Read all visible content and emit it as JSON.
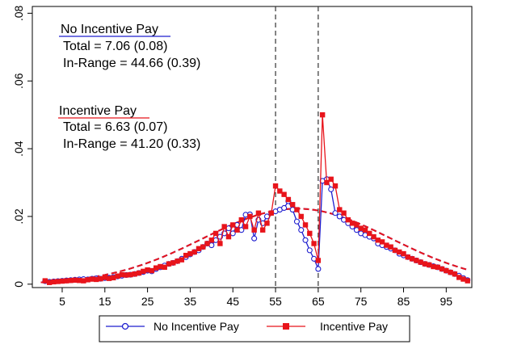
{
  "chart_data": {
    "type": "line",
    "x": [
      1,
      2,
      3,
      4,
      5,
      6,
      7,
      8,
      9,
      10,
      11,
      12,
      13,
      14,
      15,
      16,
      17,
      18,
      19,
      20,
      21,
      22,
      23,
      24,
      25,
      26,
      27,
      28,
      29,
      30,
      31,
      32,
      33,
      34,
      35,
      36,
      37,
      38,
      39,
      40,
      41,
      42,
      43,
      44,
      45,
      46,
      47,
      48,
      49,
      50,
      51,
      52,
      53,
      54,
      55,
      56,
      57,
      58,
      59,
      60,
      61,
      62,
      63,
      64,
      65,
      66,
      67,
      68,
      69,
      70,
      71,
      72,
      73,
      74,
      75,
      76,
      77,
      78,
      79,
      80,
      81,
      82,
      83,
      84,
      85,
      86,
      87,
      88,
      89,
      90,
      91,
      92,
      93,
      94,
      95,
      96,
      97,
      98,
      99,
      100
    ],
    "series": [
      {
        "name": "No Incentive Pay",
        "color": "#1f1fcf",
        "marker": "circle",
        "values": [
          0.0009,
          0.0007,
          0.0008,
          0.0009,
          0.001,
          0.0011,
          0.0012,
          0.0013,
          0.0014,
          0.0015,
          0.0014,
          0.0016,
          0.0017,
          0.0016,
          0.0018,
          0.0019,
          0.0021,
          0.0023,
          0.0025,
          0.0027,
          0.0028,
          0.003,
          0.0033,
          0.0036,
          0.004,
          0.0038,
          0.0045,
          0.005,
          0.0055,
          0.006,
          0.0063,
          0.0068,
          0.0075,
          0.008,
          0.0088,
          0.0095,
          0.01,
          0.011,
          0.012,
          0.0115,
          0.013,
          0.014,
          0.015,
          0.0165,
          0.015,
          0.0175,
          0.016,
          0.0205,
          0.0206,
          0.0135,
          0.019,
          0.018,
          0.02,
          0.021,
          0.0215,
          0.022,
          0.0225,
          0.0245,
          0.022,
          0.0185,
          0.016,
          0.013,
          0.01,
          0.0075,
          0.0045,
          0.0305,
          0.031,
          0.028,
          0.021,
          0.02,
          0.019,
          0.018,
          0.017,
          0.016,
          0.015,
          0.0145,
          0.014,
          0.0135,
          0.012,
          0.0115,
          0.011,
          0.0105,
          0.01,
          0.009,
          0.0085,
          0.008,
          0.0075,
          0.007,
          0.0065,
          0.006,
          0.0057,
          0.0053,
          0.005,
          0.0045,
          0.004,
          0.0035,
          0.003,
          0.0025,
          0.0018,
          0.0012
        ]
      },
      {
        "name": "Incentive Pay",
        "color": "#e8141b",
        "marker": "square",
        "values": [
          0.001,
          0.0005,
          0.0007,
          0.0008,
          0.0009,
          0.001,
          0.0011,
          0.0012,
          0.0011,
          0.001,
          0.0013,
          0.0015,
          0.0014,
          0.0016,
          0.002,
          0.0017,
          0.0019,
          0.0024,
          0.0028,
          0.0027,
          0.0028,
          0.003,
          0.0033,
          0.0038,
          0.0042,
          0.004,
          0.0048,
          0.0052,
          0.005,
          0.006,
          0.0063,
          0.0068,
          0.0072,
          0.0085,
          0.009,
          0.0095,
          0.0105,
          0.011,
          0.012,
          0.013,
          0.015,
          0.012,
          0.017,
          0.014,
          0.0175,
          0.016,
          0.019,
          0.017,
          0.02,
          0.016,
          0.021,
          0.016,
          0.018,
          0.021,
          0.029,
          0.0275,
          0.0265,
          0.025,
          0.0235,
          0.022,
          0.02,
          0.0175,
          0.015,
          0.012,
          0.007,
          0.05,
          0.03,
          0.031,
          0.029,
          0.022,
          0.021,
          0.019,
          0.018,
          0.0175,
          0.0165,
          0.016,
          0.015,
          0.014,
          0.013,
          0.0125,
          0.0115,
          0.011,
          0.01,
          0.0095,
          0.009,
          0.008,
          0.0075,
          0.007,
          0.0065,
          0.006,
          0.0057,
          0.0052,
          0.005,
          0.0045,
          0.004,
          0.0035,
          0.003,
          0.002,
          0.0015,
          0.001
        ]
      }
    ],
    "fitted_curves": [
      {
        "color": "#1f1fcf",
        "style": "dashed",
        "peak_x": 60,
        "peak_y": 0.0223,
        "spread": 22
      },
      {
        "color": "#e8141b",
        "style": "dashed",
        "peak_x": 60,
        "peak_y": 0.0223,
        "spread": 22
      }
    ],
    "reference_lines_x": [
      55,
      65
    ],
    "x_ticks": [
      5,
      15,
      25,
      35,
      45,
      55,
      65,
      75,
      85,
      95
    ],
    "x_tick_labels": [
      "5",
      "15",
      "25",
      "35",
      "45",
      "55",
      "65",
      "75",
      "85",
      "95"
    ],
    "y_ticks": [
      0,
      0.02,
      0.04,
      0.06,
      0.08
    ],
    "y_tick_labels": [
      "0",
      ".02",
      ".04",
      ".06",
      ".08"
    ],
    "xlim": [
      -2,
      101
    ],
    "ylim": [
      -0.001,
      0.082
    ],
    "grid": false,
    "legend_position": "bottom",
    "xlabel": "",
    "ylabel": "",
    "title": "",
    "annotations": [
      {
        "heading": "No Incentive Pay",
        "underline_color": "#1f1fcf",
        "line1": "Total = 7.06 (0.08)",
        "line2": "In-Range = 44.66 (0.39)"
      },
      {
        "heading": "Incentive Pay",
        "underline_color": "#e8141b",
        "line1": "Total = 6.63 (0.07)",
        "line2": "In-Range = 41.20 (0.33)"
      }
    ]
  }
}
